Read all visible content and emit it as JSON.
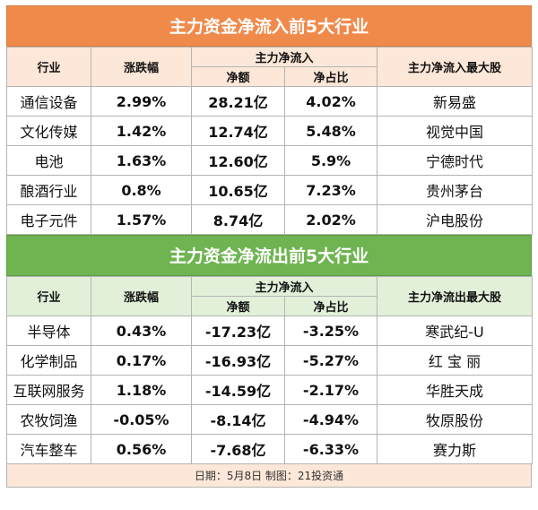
{
  "inflow": {
    "title": "主力资金净流入前5大行业",
    "headers": {
      "industry": "行业",
      "change": "涨跌幅",
      "main_net": "主力净流入",
      "net_amount": "净额",
      "net_ratio": "净占比",
      "top_stock": "主力净流入最大股"
    },
    "rows": [
      {
        "industry": "通信设备",
        "change": "2.99%",
        "amount": "28.21亿",
        "ratio": "4.02%",
        "stock": "新易盛"
      },
      {
        "industry": "文化传媒",
        "change": "1.42%",
        "amount": "12.74亿",
        "ratio": "5.48%",
        "stock": "视觉中国"
      },
      {
        "industry": "电池",
        "change": "1.63%",
        "amount": "12.60亿",
        "ratio": "5.9%",
        "stock": "宁德时代"
      },
      {
        "industry": "酿酒行业",
        "change": "0.8%",
        "amount": "10.65亿",
        "ratio": "7.23%",
        "stock": "贵州茅台"
      },
      {
        "industry": "电子元件",
        "change": "1.57%",
        "amount": "8.74亿",
        "ratio": "2.02%",
        "stock": "沪电股份"
      }
    ]
  },
  "outflow": {
    "title": "主力资金净流出前5大行业",
    "headers": {
      "industry": "行业",
      "change": "涨跌幅",
      "main_net": "主力净流入",
      "net_amount": "净额",
      "net_ratio": "净占比",
      "top_stock": "主力净流出最大股"
    },
    "rows": [
      {
        "industry": "半导体",
        "change": "0.43%",
        "amount": "-17.23亿",
        "ratio": "-3.25%",
        "stock": "寒武纪-U"
      },
      {
        "industry": "化学制品",
        "change": "0.17%",
        "amount": "-16.93亿",
        "ratio": "-5.27%",
        "stock": "红 宝 丽"
      },
      {
        "industry": "互联网服务",
        "change": "1.18%",
        "amount": "-14.59亿",
        "ratio": "-2.17%",
        "stock": "华胜天成"
      },
      {
        "industry": "农牧饲渔",
        "change": "-0.05%",
        "amount": "-8.14亿",
        "ratio": "-4.94%",
        "stock": "牧原股份"
      },
      {
        "industry": "汽车整车",
        "change": "0.56%",
        "amount": "-7.68亿",
        "ratio": "-6.33%",
        "stock": "赛力斯"
      }
    ]
  },
  "footer": "日期：5月8日 制图：21投资通",
  "colors": {
    "inflow_title_bg": "#f08a4b",
    "inflow_header_bg": "#fde7d8",
    "outflow_title_bg": "#6fb451",
    "outflow_header_bg": "#e2f0d9"
  }
}
